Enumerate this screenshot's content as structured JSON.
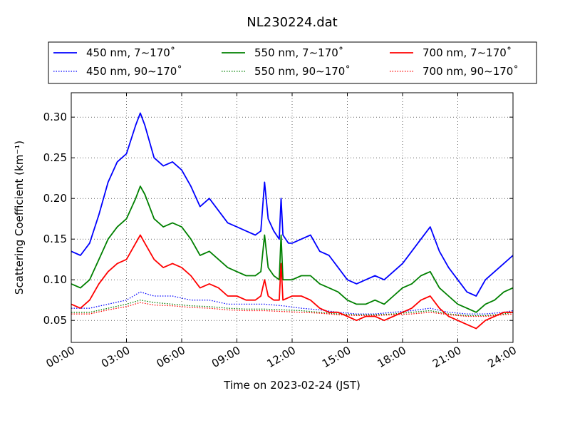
{
  "chart_data": {
    "type": "line",
    "title": "NL230224.dat",
    "xlabel": "Time on 2023-02-24 (JST)",
    "ylabel": "Scattering Coefficient (km⁻¹)",
    "xlim": [
      0,
      24
    ],
    "ylim": [
      0.023,
      0.33
    ],
    "x_ticks": [
      "00:00",
      "03:00",
      "06:00",
      "09:00",
      "12:00",
      "15:00",
      "18:00",
      "21:00",
      "24:00"
    ],
    "y_ticks": [
      "0.05",
      "0.10",
      "0.15",
      "0.20",
      "0.25",
      "0.30"
    ],
    "grid": true,
    "legend_position": "top",
    "series": [
      {
        "name": "450 nm, 7∼170˚",
        "color": "#0000ff",
        "style": "solid",
        "points": [
          [
            0,
            0.135
          ],
          [
            0.5,
            0.13
          ],
          [
            1,
            0.145
          ],
          [
            1.5,
            0.18
          ],
          [
            2,
            0.22
          ],
          [
            2.5,
            0.245
          ],
          [
            3,
            0.255
          ],
          [
            3.5,
            0.29
          ],
          [
            3.75,
            0.305
          ],
          [
            4,
            0.29
          ],
          [
            4.5,
            0.25
          ],
          [
            5,
            0.24
          ],
          [
            5.5,
            0.245
          ],
          [
            6,
            0.235
          ],
          [
            6.5,
            0.215
          ],
          [
            7,
            0.19
          ],
          [
            7.5,
            0.2
          ],
          [
            8,
            0.185
          ],
          [
            8.5,
            0.17
          ],
          [
            9,
            0.165
          ],
          [
            9.5,
            0.16
          ],
          [
            10,
            0.155
          ],
          [
            10.3,
            0.16
          ],
          [
            10.5,
            0.22
          ],
          [
            10.7,
            0.175
          ],
          [
            11,
            0.16
          ],
          [
            11.3,
            0.15
          ],
          [
            11.4,
            0.2
          ],
          [
            11.5,
            0.155
          ],
          [
            11.8,
            0.145
          ],
          [
            12,
            0.145
          ],
          [
            12.5,
            0.15
          ],
          [
            13,
            0.155
          ],
          [
            13.5,
            0.135
          ],
          [
            14,
            0.13
          ],
          [
            14.5,
            0.115
          ],
          [
            15,
            0.1
          ],
          [
            15.5,
            0.095
          ],
          [
            16,
            0.1
          ],
          [
            16.5,
            0.105
          ],
          [
            17,
            0.1
          ],
          [
            17.5,
            0.11
          ],
          [
            18,
            0.12
          ],
          [
            18.5,
            0.135
          ],
          [
            19,
            0.15
          ],
          [
            19.5,
            0.165
          ],
          [
            20,
            0.135
          ],
          [
            20.5,
            0.115
          ],
          [
            21,
            0.1
          ],
          [
            21.5,
            0.085
          ],
          [
            22,
            0.08
          ],
          [
            22.5,
            0.1
          ],
          [
            23,
            0.11
          ],
          [
            23.5,
            0.12
          ],
          [
            24,
            0.13
          ]
        ]
      },
      {
        "name": "550 nm, 7∼170˚",
        "color": "#008000",
        "style": "solid",
        "points": [
          [
            0,
            0.095
          ],
          [
            0.5,
            0.09
          ],
          [
            1,
            0.1
          ],
          [
            1.5,
            0.125
          ],
          [
            2,
            0.15
          ],
          [
            2.5,
            0.165
          ],
          [
            3,
            0.175
          ],
          [
            3.5,
            0.2
          ],
          [
            3.75,
            0.215
          ],
          [
            4,
            0.205
          ],
          [
            4.5,
            0.175
          ],
          [
            5,
            0.165
          ],
          [
            5.5,
            0.17
          ],
          [
            6,
            0.165
          ],
          [
            6.5,
            0.15
          ],
          [
            7,
            0.13
          ],
          [
            7.5,
            0.135
          ],
          [
            8,
            0.125
          ],
          [
            8.5,
            0.115
          ],
          [
            9,
            0.11
          ],
          [
            9.5,
            0.105
          ],
          [
            10,
            0.105
          ],
          [
            10.3,
            0.11
          ],
          [
            10.5,
            0.155
          ],
          [
            10.7,
            0.115
          ],
          [
            11,
            0.105
          ],
          [
            11.3,
            0.1
          ],
          [
            11.4,
            0.155
          ],
          [
            11.5,
            0.1
          ],
          [
            12,
            0.1
          ],
          [
            12.5,
            0.105
          ],
          [
            13,
            0.105
          ],
          [
            13.5,
            0.095
          ],
          [
            14,
            0.09
          ],
          [
            14.5,
            0.085
          ],
          [
            15,
            0.075
          ],
          [
            15.5,
            0.07
          ],
          [
            16,
            0.07
          ],
          [
            16.5,
            0.075
          ],
          [
            17,
            0.07
          ],
          [
            17.5,
            0.08
          ],
          [
            18,
            0.09
          ],
          [
            18.5,
            0.095
          ],
          [
            19,
            0.105
          ],
          [
            19.5,
            0.11
          ],
          [
            20,
            0.09
          ],
          [
            20.5,
            0.08
          ],
          [
            21,
            0.07
          ],
          [
            21.5,
            0.065
          ],
          [
            22,
            0.06
          ],
          [
            22.5,
            0.07
          ],
          [
            23,
            0.075
          ],
          [
            23.5,
            0.085
          ],
          [
            24,
            0.09
          ]
        ]
      },
      {
        "name": "700 nm, 7∼170˚",
        "color": "#ff0000",
        "style": "solid",
        "points": [
          [
            0,
            0.07
          ],
          [
            0.5,
            0.065
          ],
          [
            1,
            0.075
          ],
          [
            1.5,
            0.095
          ],
          [
            2,
            0.11
          ],
          [
            2.5,
            0.12
          ],
          [
            3,
            0.125
          ],
          [
            3.5,
            0.145
          ],
          [
            3.75,
            0.155
          ],
          [
            4,
            0.145
          ],
          [
            4.5,
            0.125
          ],
          [
            5,
            0.115
          ],
          [
            5.5,
            0.12
          ],
          [
            6,
            0.115
          ],
          [
            6.5,
            0.105
          ],
          [
            7,
            0.09
          ],
          [
            7.5,
            0.095
          ],
          [
            8,
            0.09
          ],
          [
            8.5,
            0.08
          ],
          [
            9,
            0.08
          ],
          [
            9.5,
            0.075
          ],
          [
            10,
            0.075
          ],
          [
            10.3,
            0.08
          ],
          [
            10.5,
            0.1
          ],
          [
            10.7,
            0.08
          ],
          [
            11,
            0.075
          ],
          [
            11.3,
            0.075
          ],
          [
            11.4,
            0.12
          ],
          [
            11.5,
            0.075
          ],
          [
            12,
            0.08
          ],
          [
            12.5,
            0.08
          ],
          [
            13,
            0.075
          ],
          [
            13.5,
            0.065
          ],
          [
            14,
            0.06
          ],
          [
            14.5,
            0.06
          ],
          [
            15,
            0.055
          ],
          [
            15.5,
            0.05
          ],
          [
            16,
            0.055
          ],
          [
            16.5,
            0.055
          ],
          [
            17,
            0.05
          ],
          [
            17.5,
            0.055
          ],
          [
            18,
            0.06
          ],
          [
            18.5,
            0.065
          ],
          [
            19,
            0.075
          ],
          [
            19.5,
            0.08
          ],
          [
            20,
            0.065
          ],
          [
            20.5,
            0.055
          ],
          [
            21,
            0.05
          ],
          [
            21.5,
            0.045
          ],
          [
            22,
            0.04
          ],
          [
            22.5,
            0.05
          ],
          [
            23,
            0.055
          ],
          [
            23.5,
            0.06
          ],
          [
            24,
            0.06
          ]
        ]
      },
      {
        "name": "450 nm, 90∼170˚",
        "color": "#0000ff",
        "style": "dotted",
        "points": [
          [
            0,
            0.065
          ],
          [
            1,
            0.065
          ],
          [
            2,
            0.07
          ],
          [
            3,
            0.075
          ],
          [
            3.75,
            0.085
          ],
          [
            4.5,
            0.08
          ],
          [
            5.5,
            0.08
          ],
          [
            6.5,
            0.075
          ],
          [
            7.5,
            0.075
          ],
          [
            8.5,
            0.07
          ],
          [
            9.5,
            0.07
          ],
          [
            10.5,
            0.07
          ],
          [
            11.5,
            0.068
          ],
          [
            12.5,
            0.065
          ],
          [
            13.5,
            0.063
          ],
          [
            14.5,
            0.06
          ],
          [
            15.5,
            0.058
          ],
          [
            16.5,
            0.058
          ],
          [
            17.5,
            0.06
          ],
          [
            18.5,
            0.062
          ],
          [
            19.5,
            0.065
          ],
          [
            20.5,
            0.06
          ],
          [
            21.5,
            0.058
          ],
          [
            22.5,
            0.058
          ],
          [
            23.5,
            0.06
          ],
          [
            24,
            0.062
          ]
        ]
      },
      {
        "name": "550 nm, 90∼170˚",
        "color": "#008000",
        "style": "dotted",
        "points": [
          [
            0,
            0.06
          ],
          [
            1,
            0.06
          ],
          [
            2,
            0.065
          ],
          [
            3,
            0.07
          ],
          [
            3.75,
            0.075
          ],
          [
            4.5,
            0.072
          ],
          [
            5.5,
            0.07
          ],
          [
            6.5,
            0.068
          ],
          [
            7.5,
            0.067
          ],
          [
            8.5,
            0.065
          ],
          [
            9.5,
            0.064
          ],
          [
            10.5,
            0.064
          ],
          [
            11.5,
            0.063
          ],
          [
            12.5,
            0.062
          ],
          [
            13.5,
            0.06
          ],
          [
            14.5,
            0.058
          ],
          [
            15.5,
            0.057
          ],
          [
            16.5,
            0.057
          ],
          [
            17.5,
            0.058
          ],
          [
            18.5,
            0.06
          ],
          [
            19.5,
            0.062
          ],
          [
            20.5,
            0.058
          ],
          [
            21.5,
            0.056
          ],
          [
            22.5,
            0.056
          ],
          [
            23.5,
            0.058
          ],
          [
            24,
            0.06
          ]
        ]
      },
      {
        "name": "700 nm, 90∼170˚",
        "color": "#ff0000",
        "style": "dotted",
        "points": [
          [
            0,
            0.058
          ],
          [
            1,
            0.058
          ],
          [
            2,
            0.063
          ],
          [
            3,
            0.067
          ],
          [
            3.75,
            0.072
          ],
          [
            4.5,
            0.069
          ],
          [
            5.5,
            0.068
          ],
          [
            6.5,
            0.066
          ],
          [
            7.5,
            0.065
          ],
          [
            8.5,
            0.063
          ],
          [
            9.5,
            0.062
          ],
          [
            10.5,
            0.062
          ],
          [
            11.5,
            0.061
          ],
          [
            12.5,
            0.06
          ],
          [
            13.5,
            0.059
          ],
          [
            14.5,
            0.057
          ],
          [
            15.5,
            0.056
          ],
          [
            16.5,
            0.056
          ],
          [
            17.5,
            0.057
          ],
          [
            18.5,
            0.058
          ],
          [
            19.5,
            0.06
          ],
          [
            20.5,
            0.057
          ],
          [
            21.5,
            0.055
          ],
          [
            22.5,
            0.055
          ],
          [
            23.5,
            0.057
          ],
          [
            24,
            0.058
          ]
        ]
      }
    ]
  }
}
